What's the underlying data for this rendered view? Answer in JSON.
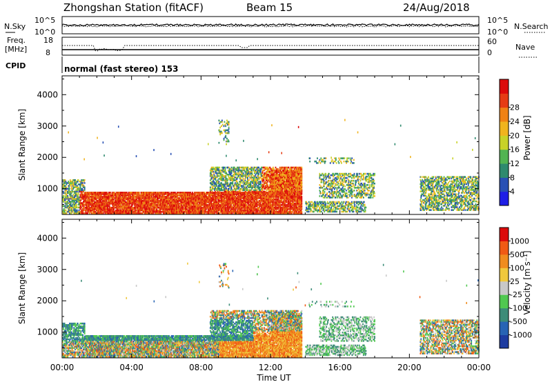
{
  "header": {
    "station": "Zhongshan Station (fitACF)",
    "beam": "Beam 15",
    "date": "24/Aug/2018"
  },
  "top_panels": {
    "nsky_label": "N.Sky",
    "nsky_ticks": [
      "10^5",
      "10^0"
    ],
    "nsearch_label": "N.Search",
    "nsearch_ticks": [
      "10^5",
      "10^0"
    ],
    "freq_label_line1": "Freq.",
    "freq_label_line2": "[MHz]",
    "freq_ticks": [
      "18",
      "8"
    ],
    "nave_label": "Nave",
    "nave_ticks": [
      "60",
      "0"
    ],
    "cpid_label": "CPID",
    "cpid_text": "normal (fast stereo) 153"
  },
  "chart_data": [
    {
      "type": "heatmap",
      "name": "power",
      "ylabel": "Slant Range [km]",
      "y_ticks": [
        1000,
        2000,
        3000,
        4000
      ],
      "ylim": [
        180,
        4600
      ],
      "x_ticks": [
        "00:00",
        "04:00",
        "08:00",
        "12:00",
        "16:00",
        "20:00",
        "00:00"
      ],
      "xlim_hours": [
        0,
        24
      ],
      "colorbar": {
        "label": "Power [dB]",
        "ticks": [
          "4",
          "8",
          "12",
          "16",
          "20",
          "24",
          "28"
        ],
        "colors": [
          "#1e1ee6",
          "#2850b4",
          "#2e8a6e",
          "#52b452",
          "#c8d228",
          "#f0b41e",
          "#f08214",
          "#e63c14",
          "#dc0a0a"
        ]
      }
    },
    {
      "type": "heatmap",
      "name": "velocity",
      "ylabel": "Slant Range [km]",
      "y_ticks": [
        1000,
        2000,
        3000,
        4000
      ],
      "ylim": [
        180,
        4600
      ],
      "x_ticks": [
        "00:00",
        "04:00",
        "08:00",
        "12:00",
        "16:00",
        "20:00",
        "00:00"
      ],
      "xlabel": "Time UT",
      "xlim_hours": [
        0,
        24
      ],
      "colorbar": {
        "label": "Velocity [m s⁻¹]",
        "ticks": [
          "1000",
          "500",
          "100",
          "25",
          "-25",
          "-100",
          "-500",
          "-1000"
        ],
        "colors": [
          "#1e3ca0",
          "#2864b4",
          "#3c8c78",
          "#50c850",
          "#c8c8c8",
          "#f0c83c",
          "#f08c1e",
          "#f05a14",
          "#dc0a0a"
        ]
      }
    }
  ]
}
